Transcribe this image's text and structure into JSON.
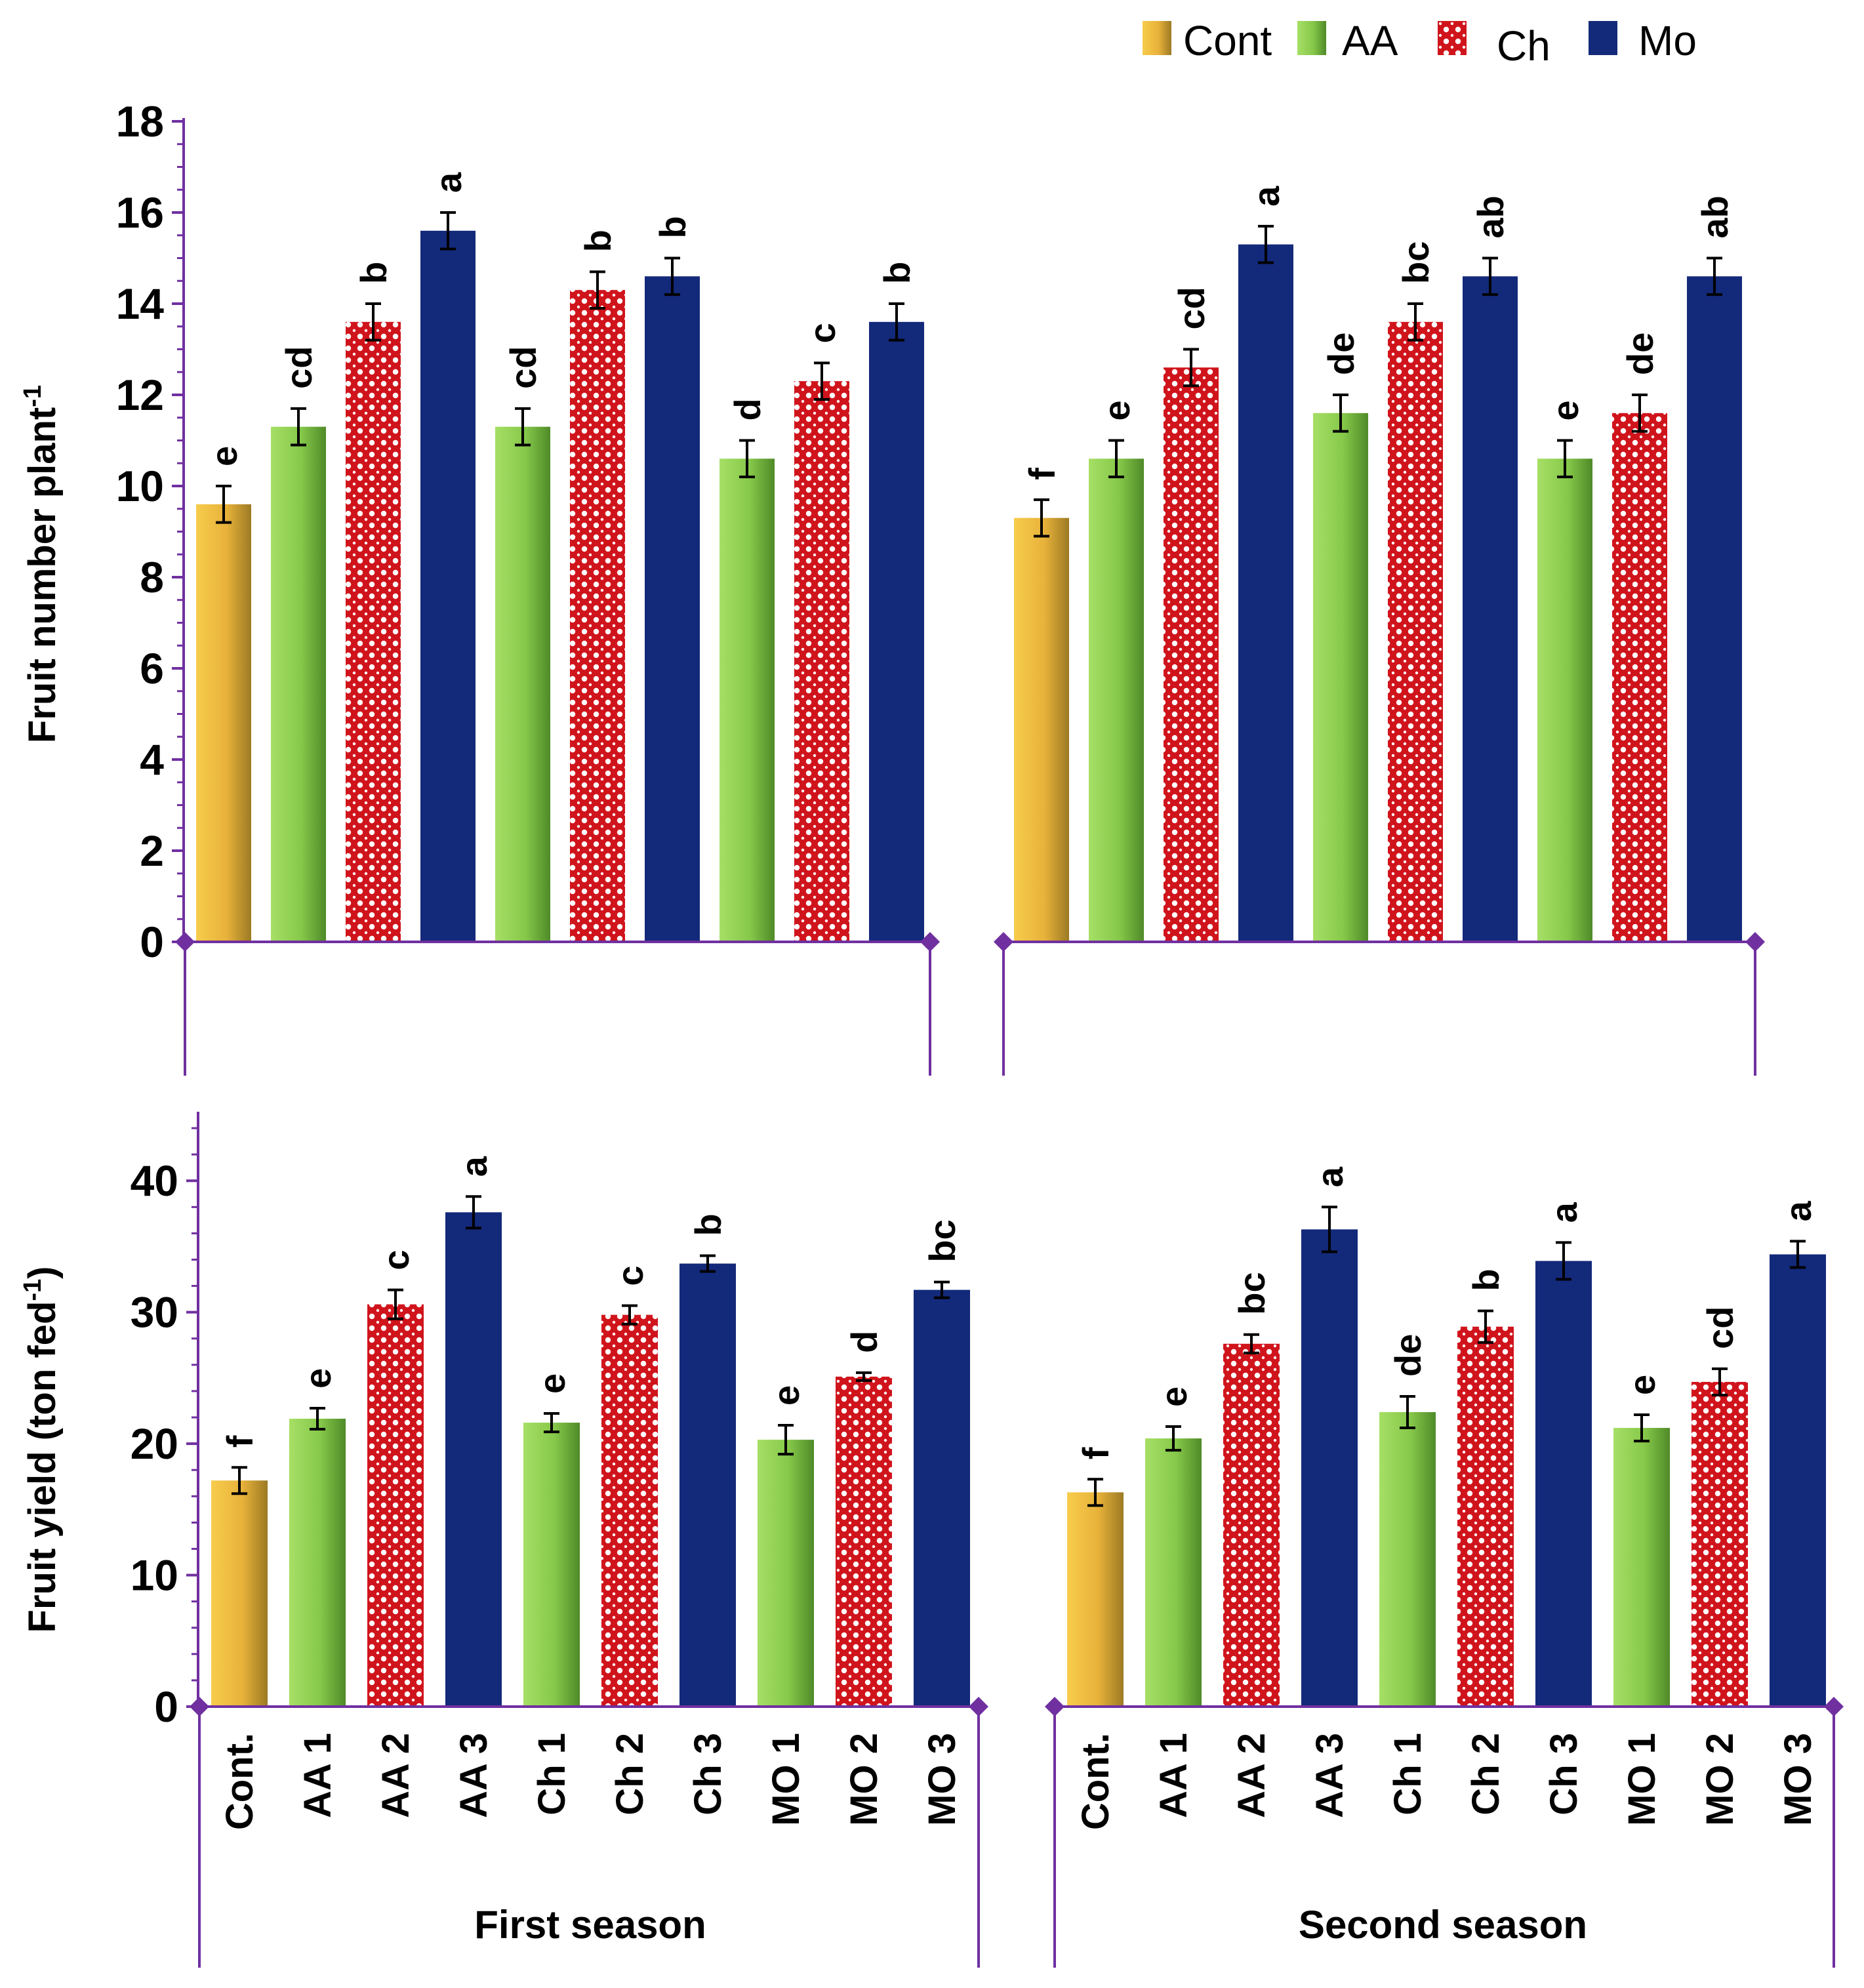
{
  "legend": [
    {
      "key": "Cont",
      "label": "Cont",
      "color": "#F2B630"
    },
    {
      "key": "AA",
      "label": "AA",
      "color": "#8CCB4A"
    },
    {
      "key": "Ch",
      "label": "Ch",
      "color": "#D0141C"
    },
    {
      "key": "Mo",
      "label": "Mo",
      "color": "#13297A"
    }
  ],
  "colors": {
    "axis": "#7030A0",
    "cont_light": "#F6C94A",
    "cont_dark": "#B08A28",
    "aa_light": "#9BD85A",
    "aa_dark": "#5E9A30",
    "ch_red": "#D0141C",
    "mo_blue": "#13297A",
    "error_bar": "#000000"
  },
  "chart_data": [
    {
      "type": "bar",
      "name": "fruit-number",
      "ylabel": "Fruit number plant",
      "ylabel_superscript": "-1",
      "ylim": [
        0,
        18
      ],
      "yticks": [
        0,
        2,
        4,
        6,
        8,
        10,
        12,
        14,
        16,
        18
      ],
      "ytick_labels": [
        "0",
        "2",
        "4",
        "6",
        "8",
        "10",
        "12",
        "14",
        "16",
        "18"
      ],
      "categories": [
        "Cont.",
        "AA 1",
        "AA 2",
        "AA 3",
        "Ch 1",
        "Ch 2",
        "Ch 3",
        "MO 1",
        "MO 2",
        "MO 3"
      ],
      "series_keys": [
        "Cont",
        "AA",
        "Ch",
        "Mo",
        "AA",
        "Ch",
        "Mo",
        "AA",
        "Ch",
        "Mo"
      ],
      "groups": [
        {
          "season": "First season",
          "values": [
            9.6,
            11.3,
            13.6,
            15.6,
            11.3,
            14.3,
            14.6,
            10.6,
            12.3,
            13.6
          ],
          "errors": [
            0.4,
            0.4,
            0.4,
            0.4,
            0.4,
            0.4,
            0.4,
            0.4,
            0.4,
            0.4
          ],
          "letters": [
            "e",
            "cd",
            "b",
            "a",
            "cd",
            "b",
            "b",
            "d",
            "c",
            "b"
          ]
        },
        {
          "season": "Second season",
          "values": [
            9.3,
            10.6,
            12.6,
            15.3,
            11.6,
            13.6,
            14.6,
            10.6,
            11.6,
            14.6
          ],
          "errors": [
            0.4,
            0.4,
            0.4,
            0.4,
            0.4,
            0.4,
            0.4,
            0.4,
            0.4,
            0.4
          ],
          "letters": [
            "f",
            "e",
            "cd",
            "a",
            "de",
            "bc",
            "ab",
            "e",
            "de",
            "ab"
          ]
        }
      ]
    },
    {
      "type": "bar",
      "name": "fruit-yield",
      "ylabel": "Fruit yield (ton fed",
      "ylabel_superscript": "-1",
      "ylabel_suffix": ")",
      "ylim": [
        0,
        45
      ],
      "yticks": [
        0,
        10,
        20,
        30,
        40
      ],
      "ytick_labels": [
        "0",
        "10",
        "20",
        "30",
        "40"
      ],
      "categories": [
        "Cont.",
        "AA 1",
        "AA 2",
        "AA 3",
        "Ch 1",
        "Ch 2",
        "Ch 3",
        "MO 1",
        "MO 2",
        "MO 3"
      ],
      "series_keys": [
        "Cont",
        "AA",
        "Ch",
        "Mo",
        "AA",
        "Ch",
        "Mo",
        "AA",
        "Ch",
        "Mo"
      ],
      "groups": [
        {
          "season": "First season",
          "values": [
            17.2,
            21.9,
            30.6,
            37.6,
            21.6,
            29.8,
            33.7,
            20.3,
            25.1,
            31.7
          ],
          "errors": [
            1.0,
            0.8,
            1.1,
            1.2,
            0.7,
            0.7,
            0.6,
            1.1,
            0.3,
            0.6
          ],
          "letters": [
            "f",
            "e",
            "c",
            "a",
            "e",
            "c",
            "b",
            "e",
            "d",
            "bc"
          ]
        },
        {
          "season": "Second season",
          "values": [
            16.3,
            20.4,
            27.6,
            36.3,
            22.4,
            28.9,
            33.9,
            21.2,
            24.7,
            34.4
          ],
          "errors": [
            1.0,
            0.9,
            0.7,
            1.7,
            1.2,
            1.2,
            1.4,
            1.0,
            1.0,
            1.0
          ],
          "letters": [
            "f",
            "e",
            "bc",
            "a",
            "de",
            "b",
            "a",
            "e",
            "cd",
            "a"
          ]
        }
      ]
    }
  ]
}
